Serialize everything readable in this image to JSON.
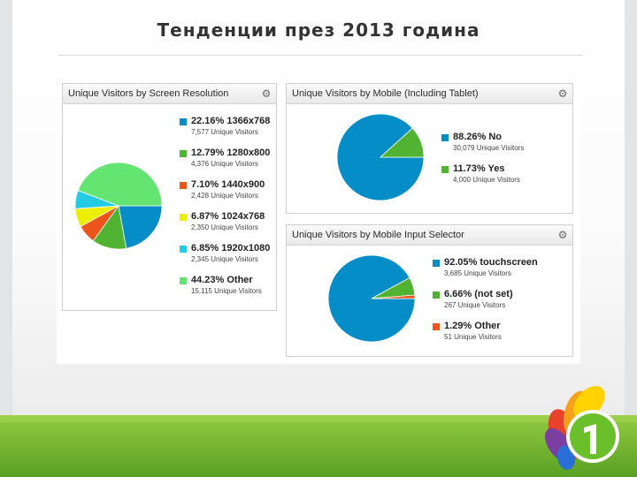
{
  "slide": {
    "title": "Тенденции през 2013 година"
  },
  "chart_data": [
    {
      "type": "pie",
      "title": "Unique Visitors by Screen Resolution",
      "unit_label": "Unique Visitors",
      "slices": [
        {
          "label": "1366x768",
          "percent": 22.16,
          "percent_text": "22.16%",
          "visitors": "7,577",
          "color": "#058dc7"
        },
        {
          "label": "1280x800",
          "percent": 12.79,
          "percent_text": "12.79%",
          "visitors": "4,376",
          "color": "#50b432"
        },
        {
          "label": "1440x900",
          "percent": 7.1,
          "percent_text": "7.10%",
          "visitors": "2,428",
          "color": "#ed561b"
        },
        {
          "label": "1024x768",
          "percent": 6.87,
          "percent_text": "6.87%",
          "visitors": "2,350",
          "color": "#edef00"
        },
        {
          "label": "1920x1080",
          "percent": 6.85,
          "percent_text": "6.85%",
          "visitors": "2,345",
          "color": "#24cbe5"
        },
        {
          "label": "Other",
          "percent": 44.23,
          "percent_text": "44.23%",
          "visitors": "15,115",
          "color": "#64e572"
        }
      ]
    },
    {
      "type": "pie",
      "title": "Unique Visitors by Mobile (Including Tablet)",
      "unit_label": "Unique Visitors",
      "slices": [
        {
          "label": "No",
          "percent": 88.26,
          "percent_text": "88.26%",
          "visitors": "30,079",
          "color": "#058dc7"
        },
        {
          "label": "Yes",
          "percent": 11.73,
          "percent_text": "11.73%",
          "visitors": "4,000",
          "color": "#50b432"
        }
      ]
    },
    {
      "type": "pie",
      "title": "Unique Visitors by Mobile Input Selector",
      "unit_label": "Unique Visitors",
      "slices": [
        {
          "label": "touchscreen",
          "percent": 92.05,
          "percent_text": "92.05%",
          "visitors": "3,685",
          "color": "#058dc7"
        },
        {
          "label": "(not set)",
          "percent": 6.66,
          "percent_text": "6.66%",
          "visitors": "267",
          "color": "#50b432"
        },
        {
          "label": "Other",
          "percent": 1.29,
          "percent_text": "1.29%",
          "visitors": "51",
          "color": "#ed561b"
        }
      ]
    }
  ],
  "icons": {
    "panel_menu": "gear-icon",
    "logo": "colorful-petals-logo-icon"
  }
}
